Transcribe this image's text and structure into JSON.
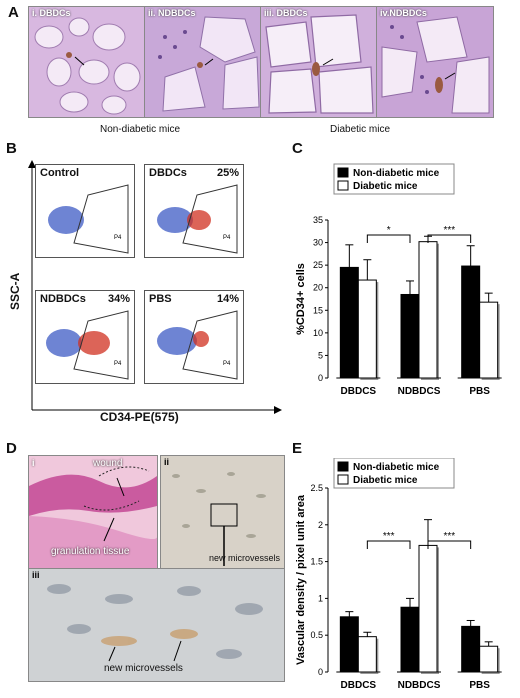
{
  "panels": {
    "a": {
      "letter": "A",
      "tiles": [
        "i. DBDCs",
        "ii. NDBDCs",
        "iii. DBDCs",
        "iv.NDBDCs"
      ],
      "group_left": "Non-diabetic mice",
      "group_right": "Diabetic mice"
    },
    "b": {
      "letter": "B",
      "y_axis": "SSC-A",
      "x_axis": "CD34-PE(575)",
      "plots": [
        {
          "title": "Control",
          "percent": "",
          "gate": "P4"
        },
        {
          "title": "DBDCs",
          "percent": "25%",
          "gate": "P4"
        },
        {
          "title": "NDBDCs",
          "percent": "34%",
          "gate": "P4"
        },
        {
          "title": "PBS",
          "percent": "14%",
          "gate": "P4"
        }
      ]
    },
    "c": {
      "letter": "C"
    },
    "d": {
      "letter": "D",
      "i": "i",
      "ii": "ii",
      "iii": "iii",
      "wound": "wound",
      "granulation": "granulation tissue",
      "microvessels_ii": "new microvessels",
      "microvessels_iii": "new microvessels"
    },
    "e": {
      "letter": "E"
    }
  },
  "colors": {
    "nondiabetic": "#000000",
    "diabetic": "#ffffff",
    "stain": "#c8a8d8"
  },
  "chart_data": [
    {
      "type": "bar",
      "panel": "C",
      "categories": [
        "DBDCS",
        "NDBDCS",
        "PBS"
      ],
      "series": [
        {
          "name": "Non-diabetic mice",
          "values": [
            24.5,
            18.5,
            24.8
          ],
          "errors": [
            5,
            3,
            4.5
          ]
        },
        {
          "name": "Diabetic mice",
          "values": [
            21.7,
            30.2,
            16.8
          ],
          "errors": [
            4.5,
            1.2,
            2
          ]
        }
      ],
      "ylabel": "%CD34+ cells",
      "ylim": [
        0,
        35
      ],
      "yticks": [
        0,
        5,
        10,
        15,
        20,
        25,
        30,
        35
      ],
      "significance": [
        {
          "from": 0,
          "to": 1,
          "label": "*"
        },
        {
          "from": 1,
          "to": 2,
          "label": "***"
        }
      ],
      "legend": "top"
    },
    {
      "type": "bar",
      "panel": "E",
      "categories": [
        "DBDCS",
        "NDBDCS",
        "PBS"
      ],
      "series": [
        {
          "name": "Non-diabetic mice",
          "values": [
            0.75,
            0.88,
            0.62
          ],
          "errors": [
            0.07,
            0.12,
            0.08
          ]
        },
        {
          "name": "Diabetic mice",
          "values": [
            0.48,
            1.72,
            0.35
          ],
          "errors": [
            0.06,
            0.35,
            0.06
          ]
        }
      ],
      "ylabel": "Vascular density / pixel unit area",
      "ylim": [
        0,
        2.5
      ],
      "yticks": [
        "0",
        "0.5",
        "1",
        "1.5",
        "2",
        "2.5"
      ],
      "significance": [
        {
          "from": 0,
          "to": 1,
          "label": "***"
        },
        {
          "from": 1,
          "to": 2,
          "label": "***"
        }
      ],
      "legend": "top"
    }
  ]
}
